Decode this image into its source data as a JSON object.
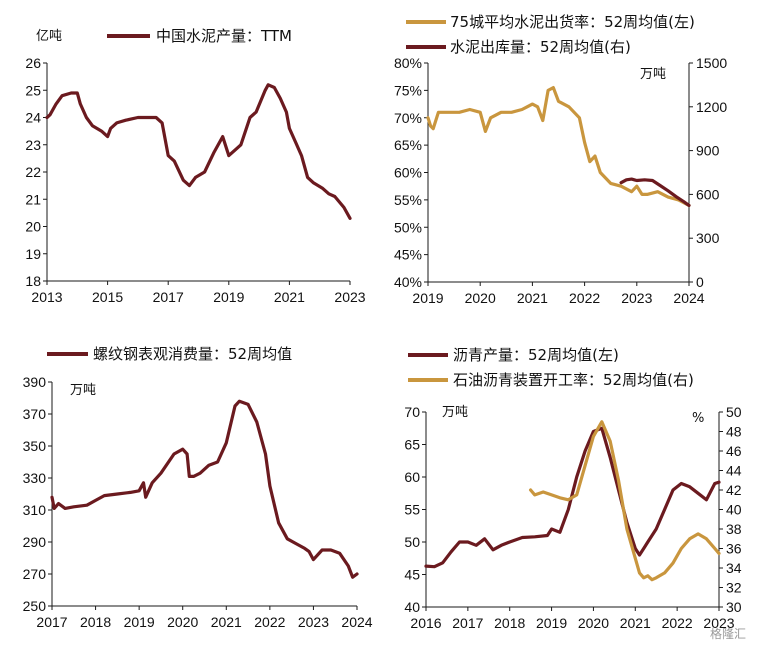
{
  "watermark": "格隆汇",
  "colors": {
    "dark": "#6b1a1f",
    "orange": "#c9963e",
    "axis": "#1a1a1a"
  },
  "chart_data": [
    {
      "type": "line",
      "legend": [
        "中国水泥产量：TTM"
      ],
      "unit_left": "亿吨",
      "xlim": [
        2013,
        2023
      ],
      "x_ticks": [
        "2013",
        "2015",
        "2017",
        "2019",
        "2021",
        "2023"
      ],
      "ylim": [
        18,
        26
      ],
      "y_ticks": [
        "18",
        "19",
        "20",
        "21",
        "22",
        "23",
        "24",
        "25",
        "26"
      ],
      "series": [
        {
          "name": "中国水泥产量：TTM",
          "axis": "left",
          "color": "dark",
          "x": [
            2013.0,
            2013.1,
            2013.3,
            2013.5,
            2013.8,
            2014.0,
            2014.1,
            2014.3,
            2014.5,
            2014.8,
            2015.0,
            2015.1,
            2015.3,
            2015.6,
            2016.0,
            2016.3,
            2016.6,
            2016.8,
            2017.0,
            2017.2,
            2017.5,
            2017.7,
            2017.9,
            2018.2,
            2018.5,
            2018.8,
            2019.0,
            2019.2,
            2019.4,
            2019.7,
            2019.9,
            2020.2,
            2020.3,
            2020.5,
            2020.7,
            2020.9,
            2021.0,
            2021.2,
            2021.4,
            2021.6,
            2021.8,
            2022.1,
            2022.3,
            2022.5,
            2022.8,
            2023.0
          ],
          "y": [
            24.0,
            24.1,
            24.5,
            24.8,
            24.9,
            24.9,
            24.5,
            24.0,
            23.7,
            23.5,
            23.3,
            23.6,
            23.8,
            23.9,
            24.0,
            24.0,
            24.0,
            23.8,
            22.6,
            22.4,
            21.7,
            21.5,
            21.8,
            22.0,
            22.7,
            23.3,
            22.6,
            22.8,
            23.0,
            24.0,
            24.2,
            25.0,
            25.2,
            25.1,
            24.7,
            24.2,
            23.6,
            23.1,
            22.6,
            21.8,
            21.6,
            21.4,
            21.2,
            21.1,
            20.7,
            20.3
          ]
        }
      ]
    },
    {
      "type": "line",
      "legend": [
        "75城平均水泥出货率：52周均值(左)",
        "水泥出库量：52周均值(右)"
      ],
      "unit_right": "万吨",
      "xlim": [
        2019,
        2024
      ],
      "x_ticks": [
        "2019",
        "2020",
        "2021",
        "2022",
        "2023",
        "2024"
      ],
      "ylim_left": [
        40,
        80
      ],
      "y_ticks_left": [
        "40%",
        "45%",
        "50%",
        "55%",
        "60%",
        "65%",
        "70%",
        "75%",
        "80%"
      ],
      "ylim_right": [
        0,
        1500
      ],
      "y_ticks_right": [
        "0",
        "300",
        "600",
        "900",
        "1200",
        "1500"
      ],
      "series": [
        {
          "name": "75城平均水泥出货率：52周均值(左)",
          "axis": "left",
          "color": "orange",
          "x": [
            2019.0,
            2019.05,
            2019.1,
            2019.2,
            2019.4,
            2019.6,
            2019.8,
            2020.0,
            2020.1,
            2020.2,
            2020.4,
            2020.6,
            2020.8,
            2020.9,
            2021.0,
            2021.1,
            2021.2,
            2021.3,
            2021.4,
            2021.5,
            2021.7,
            2021.9,
            2022.0,
            2022.1,
            2022.2,
            2022.3,
            2022.5,
            2022.7,
            2022.9,
            2023.0,
            2023.1,
            2023.2,
            2023.4,
            2023.6,
            2023.8,
            2024.0
          ],
          "y": [
            70.0,
            68.5,
            68.0,
            71.0,
            71.0,
            71.0,
            71.5,
            71.0,
            67.5,
            70.0,
            71.0,
            71.0,
            71.5,
            72.0,
            72.5,
            72.0,
            69.5,
            75.0,
            75.5,
            73.0,
            72.0,
            70.0,
            65.5,
            62.0,
            63.0,
            60.0,
            58.0,
            57.5,
            56.5,
            57.5,
            56.0,
            56.0,
            56.5,
            55.5,
            55.0,
            54.0
          ]
        },
        {
          "name": "水泥出库量：52周均值(右)",
          "axis": "right",
          "color": "dark",
          "x": [
            2022.7,
            2022.8,
            2022.9,
            2023.0,
            2023.15,
            2023.3,
            2023.45,
            2023.6,
            2023.75,
            2023.9,
            2024.0
          ],
          "y": [
            680,
            700,
            705,
            695,
            700,
            695,
            660,
            625,
            585,
            550,
            525
          ]
        }
      ]
    },
    {
      "type": "line",
      "legend": [
        "螺纹钢表观消费量：52周均值"
      ],
      "unit_left": "万吨",
      "xlim": [
        2017,
        2024
      ],
      "x_ticks": [
        "2017",
        "2018",
        "2019",
        "2020",
        "2021",
        "2022",
        "2023",
        "2024"
      ],
      "ylim": [
        250,
        390
      ],
      "y_ticks": [
        "250",
        "270",
        "290",
        "310",
        "330",
        "350",
        "370",
        "390"
      ],
      "series": [
        {
          "name": "螺纹钢表观消费量：52周均值",
          "axis": "left",
          "color": "dark",
          "x": [
            2017.0,
            2017.05,
            2017.15,
            2017.3,
            2017.5,
            2017.8,
            2018.0,
            2018.2,
            2018.5,
            2018.8,
            2019.0,
            2019.1,
            2019.15,
            2019.3,
            2019.5,
            2019.8,
            2020.0,
            2020.1,
            2020.15,
            2020.25,
            2020.4,
            2020.6,
            2020.8,
            2021.0,
            2021.2,
            2021.3,
            2021.5,
            2021.7,
            2021.9,
            2022.0,
            2022.2,
            2022.4,
            2022.6,
            2022.8,
            2022.9,
            2023.0,
            2023.2,
            2023.4,
            2023.6,
            2023.8,
            2023.9,
            2024.0
          ],
          "y": [
            318,
            311,
            314,
            311,
            312,
            313,
            316,
            319,
            320,
            321,
            322,
            327,
            318,
            327,
            333,
            345,
            348,
            345,
            331,
            331,
            333,
            338,
            340,
            352,
            375,
            378,
            376,
            365,
            345,
            325,
            302,
            292,
            289,
            286,
            284,
            279,
            285,
            285,
            283,
            275,
            268,
            270
          ]
        }
      ]
    },
    {
      "type": "line",
      "legend": [
        "沥青产量：52周均值(左)",
        "石油沥青装置开工率：52周均值(右)"
      ],
      "unit_left": "万吨",
      "unit_right": "%",
      "xlim": [
        2016,
        2023
      ],
      "x_ticks": [
        "2016",
        "2017",
        "2018",
        "2019",
        "2020",
        "2021",
        "2022",
        "2023"
      ],
      "ylim_left": [
        40,
        70
      ],
      "y_ticks_left": [
        "40",
        "45",
        "50",
        "55",
        "60",
        "65",
        "70"
      ],
      "ylim_right": [
        30,
        50
      ],
      "y_ticks_right": [
        "30",
        "32",
        "34",
        "36",
        "38",
        "40",
        "42",
        "44",
        "46",
        "48",
        "50"
      ],
      "series": [
        {
          "name": "沥青产量：52周均值(左)",
          "axis": "left",
          "color": "dark",
          "x": [
            2016.0,
            2016.2,
            2016.4,
            2016.6,
            2016.8,
            2017.0,
            2017.2,
            2017.4,
            2017.6,
            2017.8,
            2018.0,
            2018.3,
            2018.6,
            2018.9,
            2019.0,
            2019.2,
            2019.4,
            2019.6,
            2019.8,
            2020.0,
            2020.2,
            2020.4,
            2020.6,
            2020.8,
            2021.0,
            2021.1,
            2021.2,
            2021.3,
            2021.4,
            2021.5,
            2021.7,
            2021.9,
            2022.1,
            2022.3,
            2022.5,
            2022.7,
            2022.9,
            2023.0
          ],
          "y": [
            46.3,
            46.2,
            46.8,
            48.5,
            50.0,
            50.0,
            49.5,
            50.5,
            48.8,
            49.5,
            50.0,
            50.7,
            50.8,
            51.0,
            52.0,
            51.5,
            55.0,
            60.0,
            64.0,
            67.0,
            67.5,
            63.0,
            58.0,
            53.0,
            49.0,
            48.0,
            49.0,
            50.0,
            51.0,
            52.0,
            55.0,
            58.0,
            59.0,
            58.5,
            57.5,
            56.5,
            59.0,
            59.2
          ]
        },
        {
          "name": "石油沥青装置开工率：52周均值(右)",
          "axis": "right",
          "color": "orange",
          "x": [
            2018.5,
            2018.6,
            2018.8,
            2019.0,
            2019.2,
            2019.4,
            2019.6,
            2019.8,
            2020.0,
            2020.2,
            2020.4,
            2020.6,
            2020.8,
            2021.0,
            2021.1,
            2021.2,
            2021.3,
            2021.4,
            2021.5,
            2021.7,
            2021.9,
            2022.1,
            2022.3,
            2022.5,
            2022.7,
            2022.9,
            2023.0
          ],
          "y": [
            42.0,
            41.5,
            41.8,
            41.5,
            41.2,
            41.0,
            41.5,
            44.5,
            47.5,
            49.0,
            47.0,
            43.0,
            38.0,
            35.0,
            33.5,
            33.0,
            33.2,
            32.8,
            33.0,
            33.5,
            34.5,
            36.0,
            37.0,
            37.5,
            37.0,
            36.0,
            35.5
          ]
        }
      ]
    }
  ]
}
